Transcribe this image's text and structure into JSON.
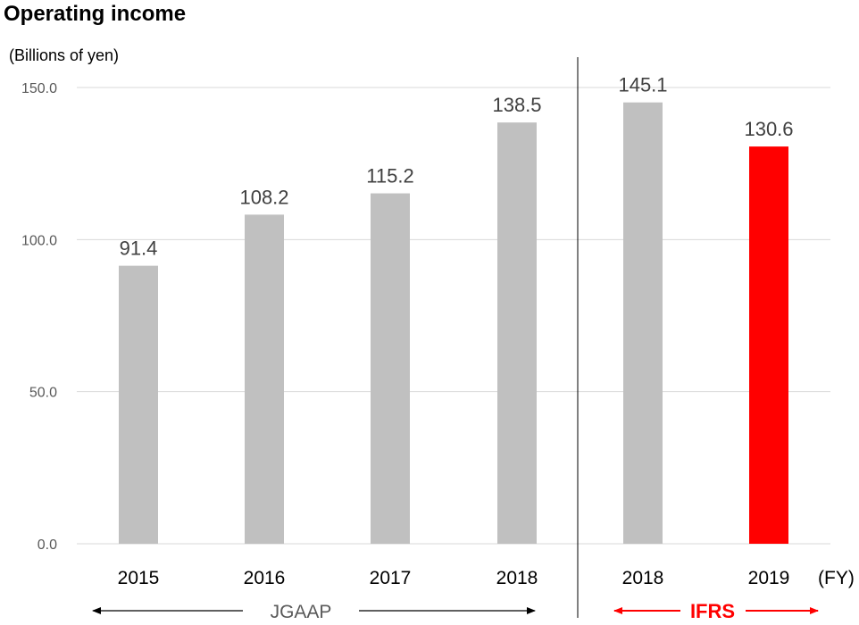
{
  "title": "Operating income",
  "unit_label": "(Billions of yen)",
  "fy_label": "(FY)",
  "jgaap_label": "JGAAP",
  "ifrs_label": "IFRS",
  "colors": {
    "bar": "#c0c0c0",
    "highlight": "#ff0000",
    "grid": "#d9d9d9"
  },
  "chart_data": {
    "type": "bar",
    "title": "Operating income",
    "ylabel": "(Billions of yen)",
    "xlabel": "(FY)",
    "ylim": [
      0,
      150
    ],
    "yticks": [
      "0.0",
      "50.0",
      "100.0",
      "150.0"
    ],
    "grid": true,
    "categories": [
      "2015",
      "2016",
      "2017",
      "2018",
      "2018",
      "2019"
    ],
    "values": [
      91.4,
      108.2,
      115.2,
      138.5,
      145.1,
      130.6
    ],
    "value_labels": [
      "91.4",
      "108.2",
      "115.2",
      "138.5",
      "145.1",
      "130.6"
    ],
    "groups": [
      {
        "name": "JGAAP",
        "categories": [
          "2015",
          "2016",
          "2017",
          "2018"
        ]
      },
      {
        "name": "IFRS",
        "categories": [
          "2018",
          "2019"
        ]
      }
    ],
    "highlight": "2019"
  }
}
